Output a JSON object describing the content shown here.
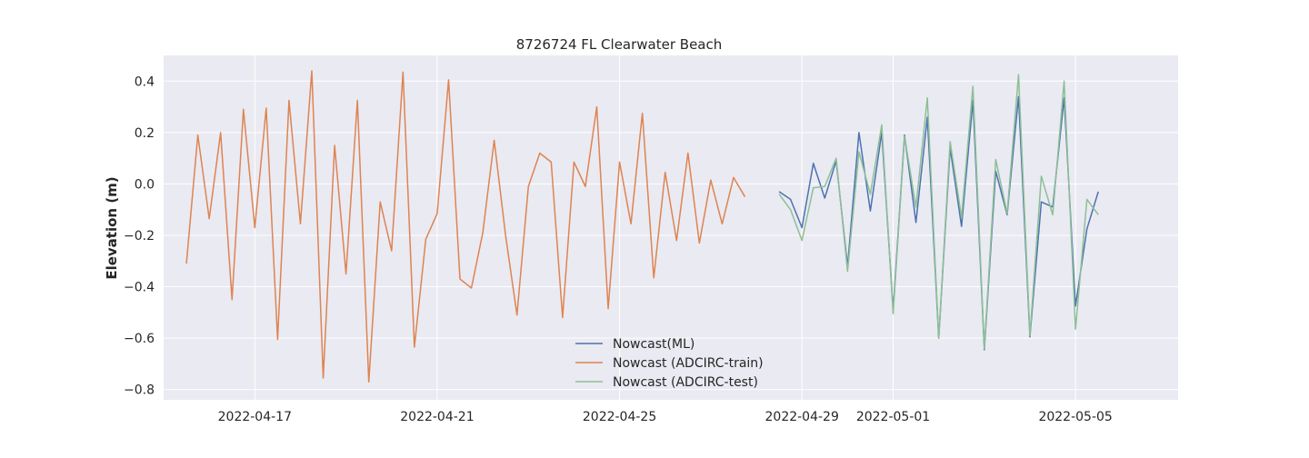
{
  "chart_data": {
    "type": "line",
    "title": "8726724 FL Clearwater Beach",
    "xlabel": "",
    "ylabel": "Elevation (m)",
    "ylim": [
      -0.84,
      0.5
    ],
    "xlim": [
      "2022-04-15T00:00",
      "2022-05-07T06:00"
    ],
    "x_ticks": [
      "2022-04-17",
      "2022-04-21",
      "2022-04-25",
      "2022-04-29",
      "2022-05-01",
      "2022-05-05"
    ],
    "y_ticks": [
      -0.8,
      -0.6,
      -0.4,
      -0.2,
      0.0,
      0.2,
      0.4
    ],
    "y_tick_labels": [
      "−0.8",
      "−0.6",
      "−0.4",
      "−0.2",
      "0.0",
      "0.2",
      "0.4"
    ],
    "grid": true,
    "legend_position": "bottom-center",
    "series": [
      {
        "name": "Nowcast(ML)",
        "color": "#4c72b0",
        "points": [
          [
            "2022-04-28T12:00",
            -0.03
          ],
          [
            "2022-04-28T18:00",
            -0.06
          ],
          [
            "2022-04-29T00:00",
            -0.17
          ],
          [
            "2022-04-29T06:00",
            0.08
          ],
          [
            "2022-04-29T12:00",
            -0.055
          ],
          [
            "2022-04-29T18:00",
            0.09
          ],
          [
            "2022-04-30T00:00",
            -0.32
          ],
          [
            "2022-04-30T06:00",
            0.2
          ],
          [
            "2022-04-30T12:00",
            -0.105
          ],
          [
            "2022-04-30T18:00",
            0.2
          ],
          [
            "2022-05-01T00:00",
            -0.49
          ],
          [
            "2022-05-01T06:00",
            0.19
          ],
          [
            "2022-05-01T12:00",
            -0.15
          ],
          [
            "2022-05-01T18:00",
            0.26
          ],
          [
            "2022-05-02T00:00",
            -0.6
          ],
          [
            "2022-05-02T06:00",
            0.14
          ],
          [
            "2022-05-02T12:00",
            -0.165
          ],
          [
            "2022-05-02T18:00",
            0.325
          ],
          [
            "2022-05-03T00:00",
            -0.645
          ],
          [
            "2022-05-03T06:00",
            0.05
          ],
          [
            "2022-05-03T12:00",
            -0.12
          ],
          [
            "2022-05-03T18:00",
            0.34
          ],
          [
            "2022-05-04T00:00",
            -0.595
          ],
          [
            "2022-05-04T06:00",
            -0.07
          ],
          [
            "2022-05-04T12:00",
            -0.09
          ],
          [
            "2022-05-04T18:00",
            0.335
          ],
          [
            "2022-05-05T00:00",
            -0.475
          ],
          [
            "2022-05-05T06:00",
            -0.175
          ],
          [
            "2022-05-05T12:00",
            -0.03
          ]
        ]
      },
      {
        "name": "Nowcast (ADCIRC-train)",
        "color": "#dd8452",
        "points": [
          [
            "2022-04-15T12:00",
            -0.31
          ],
          [
            "2022-04-15T18:00",
            0.19
          ],
          [
            "2022-04-16T00:00",
            -0.135
          ],
          [
            "2022-04-16T06:00",
            0.2
          ],
          [
            "2022-04-16T12:00",
            -0.45
          ],
          [
            "2022-04-16T18:00",
            0.29
          ],
          [
            "2022-04-17T00:00",
            -0.17
          ],
          [
            "2022-04-17T06:00",
            0.295
          ],
          [
            "2022-04-17T12:00",
            -0.605
          ],
          [
            "2022-04-17T18:00",
            0.325
          ],
          [
            "2022-04-18T00:00",
            -0.155
          ],
          [
            "2022-04-18T06:00",
            0.44
          ],
          [
            "2022-04-18T12:00",
            -0.755
          ],
          [
            "2022-04-18T18:00",
            0.15
          ],
          [
            "2022-04-19T00:00",
            -0.35
          ],
          [
            "2022-04-19T06:00",
            0.325
          ],
          [
            "2022-04-19T12:00",
            -0.77
          ],
          [
            "2022-04-19T18:00",
            -0.07
          ],
          [
            "2022-04-20T00:00",
            -0.26
          ],
          [
            "2022-04-20T06:00",
            0.435
          ],
          [
            "2022-04-20T12:00",
            -0.635
          ],
          [
            "2022-04-20T18:00",
            -0.215
          ],
          [
            "2022-04-21T00:00",
            -0.115
          ],
          [
            "2022-04-21T06:00",
            0.405
          ],
          [
            "2022-04-21T12:00",
            -0.37
          ],
          [
            "2022-04-21T18:00",
            -0.405
          ],
          [
            "2022-04-22T00:00",
            -0.19
          ],
          [
            "2022-04-22T06:00",
            0.17
          ],
          [
            "2022-04-22T12:00",
            -0.2
          ],
          [
            "2022-04-22T18:00",
            -0.51
          ],
          [
            "2022-04-23T00:00",
            -0.01
          ],
          [
            "2022-04-23T06:00",
            0.12
          ],
          [
            "2022-04-23T12:00",
            0.085
          ],
          [
            "2022-04-23T18:00",
            -0.52
          ],
          [
            "2022-04-24T00:00",
            0.085
          ],
          [
            "2022-04-24T06:00",
            -0.01
          ],
          [
            "2022-04-24T12:00",
            0.3
          ],
          [
            "2022-04-24T18:00",
            -0.485
          ],
          [
            "2022-04-25T00:00",
            0.085
          ],
          [
            "2022-04-25T06:00",
            -0.155
          ],
          [
            "2022-04-25T12:00",
            0.275
          ],
          [
            "2022-04-25T18:00",
            -0.365
          ],
          [
            "2022-04-26T00:00",
            0.045
          ],
          [
            "2022-04-26T06:00",
            -0.22
          ],
          [
            "2022-04-26T12:00",
            0.12
          ],
          [
            "2022-04-26T18:00",
            -0.23
          ],
          [
            "2022-04-27T00:00",
            0.015
          ],
          [
            "2022-04-27T06:00",
            -0.155
          ],
          [
            "2022-04-27T12:00",
            0.025
          ],
          [
            "2022-04-27T18:00",
            -0.05
          ]
        ]
      },
      {
        "name": "Nowcast (ADCIRC-test)",
        "color": "#8dbf95",
        "points": [
          [
            "2022-04-28T12:00",
            -0.04
          ],
          [
            "2022-04-28T18:00",
            -0.1
          ],
          [
            "2022-04-29T00:00",
            -0.22
          ],
          [
            "2022-04-29T06:00",
            -0.015
          ],
          [
            "2022-04-29T12:00",
            -0.01
          ],
          [
            "2022-04-29T18:00",
            0.1
          ],
          [
            "2022-04-30T00:00",
            -0.34
          ],
          [
            "2022-04-30T06:00",
            0.125
          ],
          [
            "2022-04-30T12:00",
            -0.04
          ],
          [
            "2022-04-30T18:00",
            0.23
          ],
          [
            "2022-05-01T00:00",
            -0.505
          ],
          [
            "2022-05-01T06:00",
            0.185
          ],
          [
            "2022-05-01T12:00",
            -0.09
          ],
          [
            "2022-05-01T18:00",
            0.335
          ],
          [
            "2022-05-02T00:00",
            -0.6
          ],
          [
            "2022-05-02T06:00",
            0.165
          ],
          [
            "2022-05-02T12:00",
            -0.13
          ],
          [
            "2022-05-02T18:00",
            0.38
          ],
          [
            "2022-05-03T00:00",
            -0.64
          ],
          [
            "2022-05-03T06:00",
            0.095
          ],
          [
            "2022-05-03T12:00",
            -0.115
          ],
          [
            "2022-05-03T18:00",
            0.425
          ],
          [
            "2022-05-04T00:00",
            -0.59
          ],
          [
            "2022-05-04T06:00",
            0.03
          ],
          [
            "2022-05-04T12:00",
            -0.12
          ],
          [
            "2022-05-04T18:00",
            0.4
          ],
          [
            "2022-05-05T00:00",
            -0.565
          ],
          [
            "2022-05-05T06:00",
            -0.06
          ],
          [
            "2022-05-05T12:00",
            -0.12
          ]
        ]
      }
    ]
  }
}
